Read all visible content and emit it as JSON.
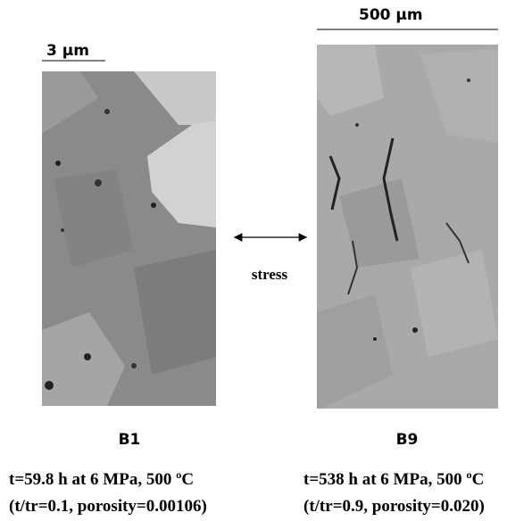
{
  "left_panel": {
    "scale_bar": "3 μm",
    "label": "B1",
    "caption": [
      "t=59.8 h at 6 MPa, 500 ºC",
      "(t/tr=0.1, porosity=0.00106)"
    ]
  },
  "right_panel": {
    "scale_bar": "500 μm",
    "label": "B9",
    "caption": [
      "t=538 h at 6 MPa, 500 ºC",
      "(t/tr=0.9, porosity=0.020)"
    ]
  },
  "arrow_label": "stress"
}
